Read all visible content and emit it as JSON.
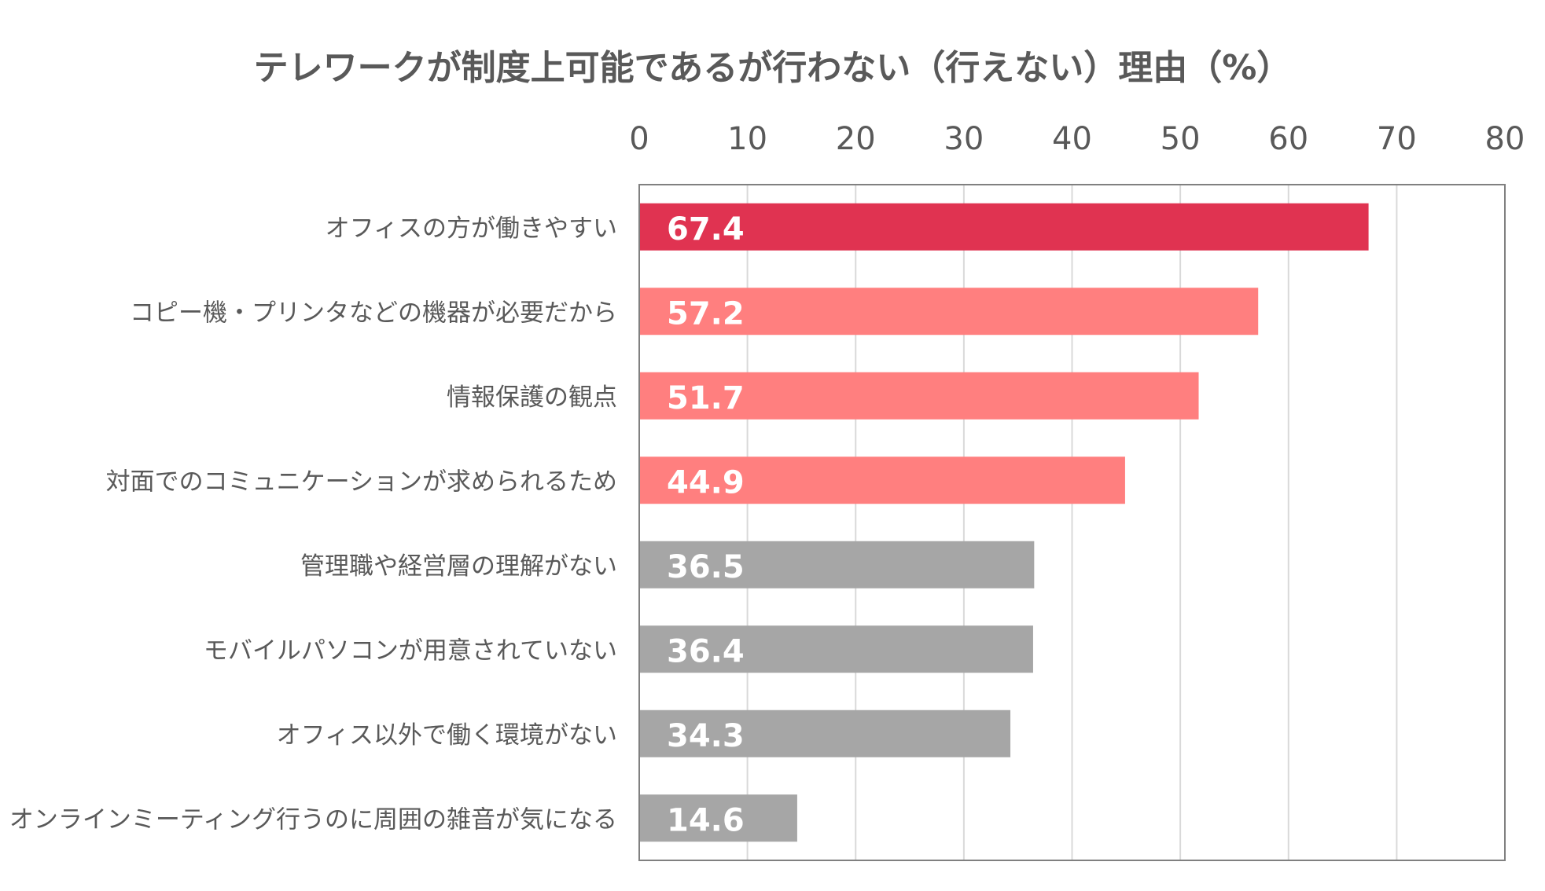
{
  "chart_data": {
    "type": "bar",
    "orientation": "horizontal",
    "title": "テレワークが制度上可能であるが行わない（行えない）理由（%）",
    "xlabel": "",
    "ylabel": "",
    "xlim": [
      0,
      80
    ],
    "x_ticks": [
      "0",
      "10",
      "20",
      "30",
      "40",
      "50",
      "60",
      "70",
      "80"
    ],
    "axis_position": "top",
    "grid": true,
    "categories": [
      "オフィスの方が働きやすい",
      "コピー機・プリンタなどの機器が必要だから",
      "情報保護の観点",
      "対面でのコミュニケーションが求められるため",
      "管理職や経営層の理解がない",
      "モバイルパソコンが用意されていない",
      "オフィス以外で働く環境がない",
      "オンラインミーティング行うのに周囲の雑音が気になる"
    ],
    "values": [
      67.4,
      57.2,
      51.7,
      44.9,
      36.5,
      36.4,
      34.3,
      14.6
    ],
    "value_labels": [
      "67.4",
      "57.2",
      "51.7",
      "44.9",
      "36.5",
      "36.4",
      "34.3",
      "14.6"
    ],
    "bar_colors": [
      "#E03351",
      "#FF7F7F",
      "#FF7F7F",
      "#FF7F7F",
      "#A6A6A6",
      "#A6A6A6",
      "#A6A6A6",
      "#A6A6A6"
    ]
  },
  "colors": {
    "text": "#595959",
    "grid": "#D9D9D9",
    "frame": "#808080",
    "label_text": "#FFFFFF"
  }
}
